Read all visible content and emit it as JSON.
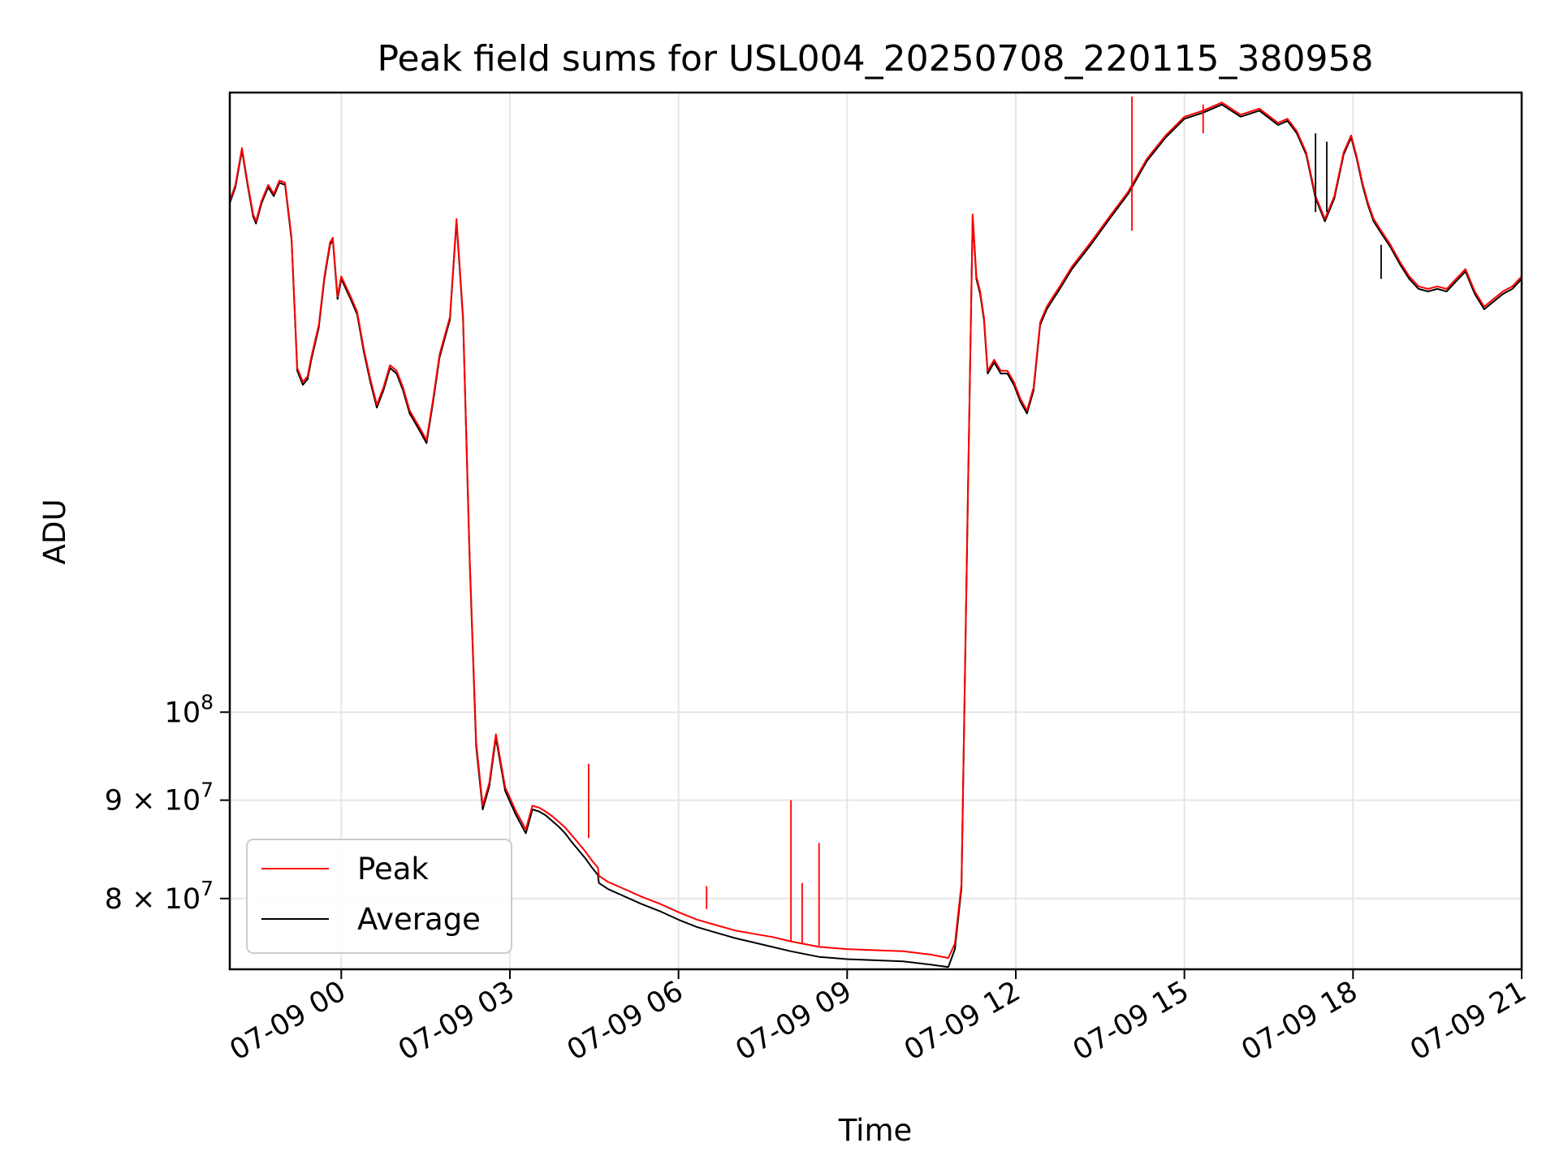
{
  "chart_data": {
    "type": "line",
    "title": "Peak field sums for USL004_20250708_220115_380958",
    "xlabel": "Time",
    "ylabel": "ADU",
    "yscale": "log",
    "grid": true,
    "legend_position": "lower-left",
    "xlim": [
      "2025-07-08 22:01",
      "2025-07-09 21:00"
    ],
    "ylim": [
      73500000,
      210000000
    ],
    "x_ticks": [
      {
        "value": "2025-07-09 00:00",
        "label": "07-09 00"
      },
      {
        "value": "2025-07-09 03:00",
        "label": "07-09 03"
      },
      {
        "value": "2025-07-09 06:00",
        "label": "07-09 06"
      },
      {
        "value": "2025-07-09 09:00",
        "label": "07-09 09"
      },
      {
        "value": "2025-07-09 12:00",
        "label": "07-09 12"
      },
      {
        "value": "2025-07-09 15:00",
        "label": "07-09 15"
      },
      {
        "value": "2025-07-09 18:00",
        "label": "07-09 18"
      },
      {
        "value": "2025-07-09 21:00",
        "label": "07-09 21"
      }
    ],
    "y_ticks": [
      {
        "value": 80000000,
        "mantissa": "8 × 10",
        "exponent": "7"
      },
      {
        "value": 90000000,
        "mantissa": "9 × 10",
        "exponent": "7"
      },
      {
        "value": 100000000,
        "mantissa": "10",
        "exponent": "8"
      }
    ],
    "series": [
      {
        "name": "Average",
        "color": "#000000",
        "x": [
          "2025-07-08 22:01",
          "2025-07-08 22:07",
          "2025-07-08 22:14",
          "2025-07-08 22:20",
          "2025-07-08 22:26",
          "2025-07-08 22:29",
          "2025-07-08 22:35",
          "2025-07-08 22:42",
          "2025-07-08 22:48",
          "2025-07-08 22:54",
          "2025-07-08 23:00",
          "2025-07-08 23:07",
          "2025-07-08 23:13",
          "2025-07-08 23:19",
          "2025-07-08 23:24",
          "2025-07-08 23:28",
          "2025-07-08 23:36",
          "2025-07-08 23:42",
          "2025-07-08 23:48",
          "2025-07-08 23:51",
          "2025-07-08 23:56",
          "2025-07-09 00:00",
          "2025-07-09 00:10",
          "2025-07-09 00:17",
          "2025-07-09 00:24",
          "2025-07-09 00:31",
          "2025-07-09 00:38",
          "2025-07-09 00:45",
          "2025-07-09 00:52",
          "2025-07-09 00:59",
          "2025-07-09 01:06",
          "2025-07-09 01:13",
          "2025-07-09 01:24",
          "2025-07-09 01:31",
          "2025-07-09 01:38",
          "2025-07-09 01:45",
          "2025-07-09 01:56",
          "2025-07-09 02:03",
          "2025-07-09 02:10",
          "2025-07-09 02:17",
          "2025-07-09 02:24",
          "2025-07-09 02:31",
          "2025-07-09 02:38",
          "2025-07-09 02:45",
          "2025-07-09 02:55",
          "2025-07-09 03:06",
          "2025-07-09 03:17",
          "2025-07-09 03:24",
          "2025-07-09 03:31",
          "2025-07-09 03:38",
          "2025-07-09 03:45",
          "2025-07-09 03:52",
          "2025-07-09 03:59",
          "2025-07-09 04:06",
          "2025-07-09 04:13",
          "2025-07-09 04:20",
          "2025-07-09 04:27",
          "2025-07-09 04:34",
          "2025-07-09 04:35",
          "2025-07-09 04:45",
          "2025-07-09 05:00",
          "2025-07-09 05:20",
          "2025-07-09 05:40",
          "2025-07-09 06:00",
          "2025-07-09 06:20",
          "2025-07-09 06:40",
          "2025-07-09 07:00",
          "2025-07-09 07:20",
          "2025-07-09 07:40",
          "2025-07-09 08:00",
          "2025-07-09 08:30",
          "2025-07-09 09:00",
          "2025-07-09 09:30",
          "2025-07-09 10:00",
          "2025-07-09 10:30",
          "2025-07-09 10:48",
          "2025-07-09 10:55",
          "2025-07-09 11:02",
          "2025-07-09 11:09",
          "2025-07-09 11:14",
          "2025-07-09 11:18",
          "2025-07-09 11:22",
          "2025-07-09 11:26",
          "2025-07-09 11:30",
          "2025-07-09 11:37",
          "2025-07-09 11:44",
          "2025-07-09 11:51",
          "2025-07-09 11:58",
          "2025-07-09 12:05",
          "2025-07-09 12:12",
          "2025-07-09 12:19",
          "2025-07-09 12:26",
          "2025-07-09 12:33",
          "2025-07-09 12:40",
          "2025-07-09 12:47",
          "2025-07-09 13:00",
          "2025-07-09 13:20",
          "2025-07-09 13:40",
          "2025-07-09 14:00",
          "2025-07-09 14:20",
          "2025-07-09 14:40",
          "2025-07-09 15:00",
          "2025-07-09 15:20",
          "2025-07-09 15:40",
          "2025-07-09 16:00",
          "2025-07-09 16:20",
          "2025-07-09 16:40",
          "2025-07-09 16:50",
          "2025-07-09 17:00",
          "2025-07-09 17:10",
          "2025-07-09 17:20",
          "2025-07-09 17:30",
          "2025-07-09 17:40",
          "2025-07-09 17:50",
          "2025-07-09 17:58",
          "2025-07-09 18:04",
          "2025-07-09 18:10",
          "2025-07-09 18:16",
          "2025-07-09 18:22",
          "2025-07-09 18:30",
          "2025-07-09 18:40",
          "2025-07-09 18:50",
          "2025-07-09 19:00",
          "2025-07-09 19:10",
          "2025-07-09 19:20",
          "2025-07-09 19:30",
          "2025-07-09 19:40",
          "2025-07-09 19:50",
          "2025-07-09 20:00",
          "2025-07-09 20:10",
          "2025-07-09 20:20",
          "2025-07-09 20:30",
          "2025-07-09 20:40",
          "2025-07-09 20:50",
          "2025-07-09 21:00"
        ],
        "y": [
          184000000,
          187500000,
          196000000,
          188000000,
          181000000,
          179500000,
          184000000,
          187500000,
          185500000,
          188500000,
          188000000,
          176000000,
          150500000,
          148000000,
          149000000,
          152500000,
          158500000,
          168000000,
          175000000,
          176000000,
          164000000,
          168000000,
          164000000,
          161000000,
          154000000,
          148500000,
          144000000,
          147000000,
          151000000,
          150000000,
          147000000,
          143000000,
          140000000,
          138000000,
          145000000,
          153000000,
          160000000,
          180000000,
          160000000,
          120000000,
          96000000,
          89000000,
          91500000,
          97000000,
          91000000,
          88500000,
          86500000,
          89000000,
          88800000,
          88400000,
          87800000,
          87200000,
          86500000,
          85600000,
          84800000,
          84000000,
          83100000,
          82300000,
          81500000,
          80900000,
          80300000,
          79500000,
          78800000,
          78000000,
          77300000,
          76800000,
          76300000,
          75900000,
          75500000,
          75100000,
          74600000,
          74400000,
          74300000,
          74200000,
          73900000,
          73700000,
          75300000,
          81000000,
          130000000,
          181000000,
          168000000,
          165000000,
          160000000,
          150000000,
          152000000,
          150000000,
          150000000,
          148000000,
          145000000,
          143000000,
          147000000,
          159000000,
          162000000,
          164000000,
          166000000,
          170000000,
          175000000,
          180500000,
          186000000,
          193500000,
          199000000,
          203500000,
          205000000,
          207000000,
          204000000,
          205500000,
          202000000,
          203000000,
          200000000,
          195000000,
          185000000,
          180000000,
          185000000,
          195000000,
          199000000,
          194000000,
          188000000,
          183500000,
          180000000,
          177500000,
          174500000,
          171000000,
          168000000,
          166000000,
          165500000,
          166000000,
          165500000,
          167500000,
          169500000,
          165000000,
          162000000,
          163500000,
          165000000,
          166000000,
          168000000
        ]
      },
      {
        "name": "Peak",
        "color": "#ff0000",
        "x": [
          "2025-07-08 22:01",
          "2025-07-08 22:07",
          "2025-07-08 22:14",
          "2025-07-08 22:20",
          "2025-07-08 22:26",
          "2025-07-08 22:29",
          "2025-07-08 22:35",
          "2025-07-08 22:42",
          "2025-07-08 22:48",
          "2025-07-08 22:54",
          "2025-07-08 23:00",
          "2025-07-08 23:07",
          "2025-07-08 23:13",
          "2025-07-08 23:19",
          "2025-07-08 23:24",
          "2025-07-08 23:28",
          "2025-07-08 23:36",
          "2025-07-08 23:42",
          "2025-07-08 23:48",
          "2025-07-08 23:51",
          "2025-07-08 23:56",
          "2025-07-09 00:00",
          "2025-07-09 00:10",
          "2025-07-09 00:17",
          "2025-07-09 00:24",
          "2025-07-09 00:31",
          "2025-07-09 00:38",
          "2025-07-09 00:45",
          "2025-07-09 00:52",
          "2025-07-09 00:59",
          "2025-07-09 01:06",
          "2025-07-09 01:13",
          "2025-07-09 01:24",
          "2025-07-09 01:31",
          "2025-07-09 01:38",
          "2025-07-09 01:45",
          "2025-07-09 01:56",
          "2025-07-09 02:03",
          "2025-07-09 02:10",
          "2025-07-09 02:17",
          "2025-07-09 02:24",
          "2025-07-09 02:31",
          "2025-07-09 02:38",
          "2025-07-09 02:45",
          "2025-07-09 02:55",
          "2025-07-09 03:06",
          "2025-07-09 03:17",
          "2025-07-09 03:24",
          "2025-07-09 03:31",
          "2025-07-09 03:38",
          "2025-07-09 03:45",
          "2025-07-09 03:52",
          "2025-07-09 03:59",
          "2025-07-09 04:06",
          "2025-07-09 04:13",
          "2025-07-09 04:20",
          "2025-07-09 04:27",
          "2025-07-09 04:34",
          "2025-07-09 04:35",
          "2025-07-09 04:45",
          "2025-07-09 05:00",
          "2025-07-09 05:20",
          "2025-07-09 05:40",
          "2025-07-09 06:00",
          "2025-07-09 06:20",
          "2025-07-09 06:40",
          "2025-07-09 07:00",
          "2025-07-09 07:20",
          "2025-07-09 07:40",
          "2025-07-09 08:00",
          "2025-07-09 08:30",
          "2025-07-09 09:00",
          "2025-07-09 09:30",
          "2025-07-09 10:00",
          "2025-07-09 10:30",
          "2025-07-09 10:48",
          "2025-07-09 10:55",
          "2025-07-09 11:02",
          "2025-07-09 11:09",
          "2025-07-09 11:14",
          "2025-07-09 11:18",
          "2025-07-09 11:22",
          "2025-07-09 11:26",
          "2025-07-09 11:30",
          "2025-07-09 11:37",
          "2025-07-09 11:44",
          "2025-07-09 11:51",
          "2025-07-09 11:58",
          "2025-07-09 12:05",
          "2025-07-09 12:12",
          "2025-07-09 12:19",
          "2025-07-09 12:26",
          "2025-07-09 12:33",
          "2025-07-09 12:40",
          "2025-07-09 12:47",
          "2025-07-09 13:00",
          "2025-07-09 13:20",
          "2025-07-09 13:40",
          "2025-07-09 14:00",
          "2025-07-09 14:20",
          "2025-07-09 14:40",
          "2025-07-09 15:00",
          "2025-07-09 15:20",
          "2025-07-09 15:40",
          "2025-07-09 16:00",
          "2025-07-09 16:20",
          "2025-07-09 16:40",
          "2025-07-09 16:50",
          "2025-07-09 17:00",
          "2025-07-09 17:10",
          "2025-07-09 17:20",
          "2025-07-09 17:30",
          "2025-07-09 17:40",
          "2025-07-09 17:50",
          "2025-07-09 17:58",
          "2025-07-09 18:04",
          "2025-07-09 18:10",
          "2025-07-09 18:16",
          "2025-07-09 18:22",
          "2025-07-09 18:30",
          "2025-07-09 18:40",
          "2025-07-09 18:50",
          "2025-07-09 19:00",
          "2025-07-09 19:10",
          "2025-07-09 19:20",
          "2025-07-09 19:30",
          "2025-07-09 19:40",
          "2025-07-09 19:50",
          "2025-07-09 20:00",
          "2025-07-09 20:10",
          "2025-07-09 20:20",
          "2025-07-09 20:30",
          "2025-07-09 20:40",
          "2025-07-09 20:50",
          "2025-07-09 21:00"
        ],
        "y": [
          184500000,
          188000000,
          196500000,
          188500000,
          181500000,
          180000000,
          184500000,
          188000000,
          186000000,
          189000000,
          188500000,
          176500000,
          151000000,
          148500000,
          149500000,
          153000000,
          159000000,
          168500000,
          175500000,
          176500000,
          164500000,
          168500000,
          164500000,
          161500000,
          154500000,
          149000000,
          144500000,
          147500000,
          151500000,
          150500000,
          147500000,
          143500000,
          140500000,
          138500000,
          145500000,
          153500000,
          160500000,
          180500000,
          160500000,
          120500000,
          96500000,
          89400000,
          91900000,
          97400000,
          91400000,
          88900000,
          86900000,
          89400000,
          89200000,
          88800000,
          88300000,
          87700000,
          87100000,
          86300000,
          85500000,
          84700000,
          83800000,
          83000000,
          82200000,
          81600000,
          81000000,
          80200000,
          79500000,
          78700000,
          78000000,
          77500000,
          77000000,
          76700000,
          76400000,
          76000000,
          75500000,
          75300000,
          75200000,
          75100000,
          74800000,
          74500000,
          75800000,
          81400000,
          130500000,
          181500000,
          168500000,
          165500000,
          160500000,
          150500000,
          152500000,
          150500000,
          150500000,
          148500000,
          145500000,
          143500000,
          147500000,
          159500000,
          162500000,
          164500000,
          166500000,
          170500000,
          175500000,
          181000000,
          186500000,
          194000000,
          199500000,
          204000000,
          205500000,
          207500000,
          204500000,
          206000000,
          202500000,
          203500000,
          200500000,
          195500000,
          185500000,
          180500000,
          185500000,
          195500000,
          199500000,
          194500000,
          188500000,
          184000000,
          180500000,
          178000000,
          175000000,
          171500000,
          168500000,
          166500000,
          166000000,
          166500000,
          166000000,
          168000000,
          170000000,
          165500000,
          162500000,
          164000000,
          165500000,
          166500000,
          168500000
        ]
      }
    ],
    "spikes": [
      {
        "series": "Peak",
        "x": "2025-07-09 04:24",
        "low": 86000000,
        "high": 94000000
      },
      {
        "series": "Peak",
        "x": "2025-07-09 06:30",
        "low": 79000000,
        "high": 81200000
      },
      {
        "series": "Peak",
        "x": "2025-07-09 08:00",
        "low": 76000000,
        "high": 90000000
      },
      {
        "series": "Peak",
        "x": "2025-07-09 08:12",
        "low": 75800000,
        "high": 81500000
      },
      {
        "series": "Peak",
        "x": "2025-07-09 08:30",
        "low": 75600000,
        "high": 85500000
      },
      {
        "series": "Peak",
        "x": "2025-07-09 14:04",
        "low": 178000000,
        "high": 209000000
      },
      {
        "series": "Peak",
        "x": "2025-07-09 15:20",
        "low": 200000000,
        "high": 207000000
      },
      {
        "series": "Average",
        "x": "2025-07-09 17:20",
        "low": 182000000,
        "high": 200000000
      },
      {
        "series": "Average",
        "x": "2025-07-09 17:32",
        "low": 182000000,
        "high": 198000000
      },
      {
        "series": "Average",
        "x": "2025-07-09 18:30",
        "low": 168000000,
        "high": 175000000
      }
    ]
  }
}
